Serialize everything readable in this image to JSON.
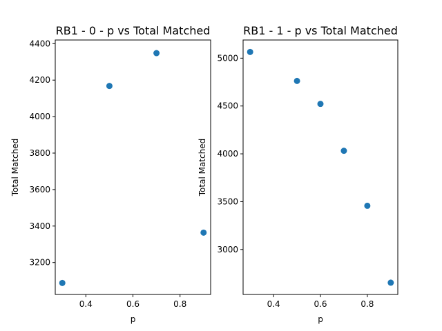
{
  "chart_data": [
    {
      "type": "scatter",
      "title": "RB1 - 0 - p vs Total Matched",
      "xlabel": "p",
      "ylabel": "Total Matched",
      "marker_color": "#1f77b4",
      "xlim": [
        0.27,
        0.93
      ],
      "ylim": [
        3025,
        4420
      ],
      "xticks": [
        0.4,
        0.6,
        0.8
      ],
      "xtick_labels": [
        "0.4",
        "0.6",
        "0.8"
      ],
      "yticks": [
        3200,
        3400,
        3600,
        3800,
        4000,
        4200,
        4400
      ],
      "ytick_labels": [
        "3200",
        "3400",
        "3600",
        "3800",
        "4000",
        "4200",
        "4400"
      ],
      "x": [
        0.3,
        0.5,
        0.7,
        0.9
      ],
      "y": [
        3088,
        4168,
        4348,
        3364
      ]
    },
    {
      "type": "scatter",
      "title": "RB1 - 1 - p vs Total Matched",
      "xlabel": "p",
      "ylabel": "Total Matched",
      "marker_color": "#1f77b4",
      "xlim": [
        0.27,
        0.93
      ],
      "ylim": [
        2530,
        5190
      ],
      "xticks": [
        0.4,
        0.6,
        0.8
      ],
      "xtick_labels": [
        "0.4",
        "0.6",
        "0.8"
      ],
      "yticks": [
        3000,
        3500,
        4000,
        4500,
        5000
      ],
      "ytick_labels": [
        "3000",
        "3500",
        "4000",
        "4500",
        "5000"
      ],
      "x": [
        0.3,
        0.5,
        0.6,
        0.7,
        0.8,
        0.9
      ],
      "y": [
        5065,
        4762,
        4522,
        4032,
        3457,
        2653
      ]
    }
  ]
}
